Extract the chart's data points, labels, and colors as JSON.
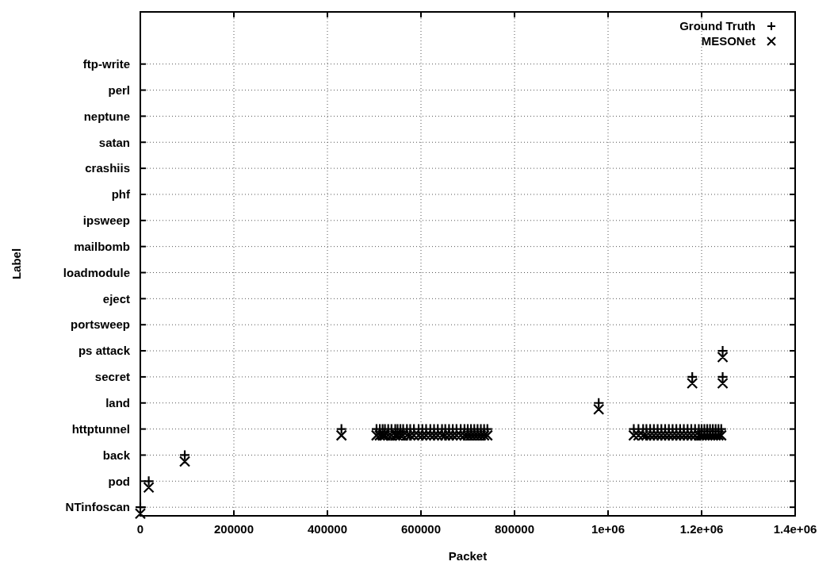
{
  "chart_data": {
    "type": "scatter",
    "orientation": "horizontal",
    "xlabel": "Packet",
    "ylabel": "Label",
    "xlim": [
      0,
      1400000
    ],
    "xticks": [
      0,
      200000,
      400000,
      600000,
      800000,
      {
        "value": 1000000,
        "label": "1e+06"
      },
      {
        "value": 1200000,
        "label": "1.2e+06"
      },
      {
        "value": 1400000,
        "label": "1.4e+06"
      }
    ],
    "categories": [
      "ftp-write",
      "perl",
      "neptune",
      "satan",
      "crashiis",
      "phf",
      "ipsweep",
      "mailbomb",
      "loadmodule",
      "eject",
      "portsweep",
      "ps attack",
      "secret",
      "land",
      "httptunnel",
      "back",
      "pod",
      "NTinfoscan"
    ],
    "grid": true,
    "legend": "top right",
    "series": [
      {
        "name": "Ground Truth",
        "color": "#000000",
        "marker": "plus",
        "values": [
          0,
          18000,
          95000,
          430000,
          505000,
          512000,
          518000,
          523000,
          530000,
          537000,
          545000,
          550000,
          556000,
          562000,
          570000,
          577000,
          585000,
          595000,
          603000,
          611000,
          620000,
          628000,
          636000,
          645000,
          652000,
          660000,
          668000,
          676000,
          685000,
          693000,
          700000,
          707000,
          714000,
          721000,
          728000,
          735000,
          742000,
          980000,
          1055000,
          1065000,
          1075000,
          1082000,
          1090000,
          1098000,
          1106000,
          1114000,
          1122000,
          1130000,
          1138000,
          1146000,
          1154000,
          1162000,
          1170000,
          1178000,
          1186000,
          1194000,
          1200000,
          1206000,
          1212000,
          1218000,
          1224000,
          1230000,
          1236000,
          1242000,
          1180000,
          1245000,
          1245000
        ],
        "x": [
          "NTinfoscan",
          "pod",
          "back",
          "httptunnel",
          "httptunnel",
          "httptunnel",
          "httptunnel",
          "httptunnel",
          "httptunnel",
          "httptunnel",
          "httptunnel",
          "httptunnel",
          "httptunnel",
          "httptunnel",
          "httptunnel",
          "httptunnel",
          "httptunnel",
          "httptunnel",
          "httptunnel",
          "httptunnel",
          "httptunnel",
          "httptunnel",
          "httptunnel",
          "httptunnel",
          "httptunnel",
          "httptunnel",
          "httptunnel",
          "httptunnel",
          "httptunnel",
          "httptunnel",
          "httptunnel",
          "httptunnel",
          "httptunnel",
          "httptunnel",
          "httptunnel",
          "httptunnel",
          "httptunnel",
          "land",
          "httptunnel",
          "httptunnel",
          "httptunnel",
          "httptunnel",
          "httptunnel",
          "httptunnel",
          "httptunnel",
          "httptunnel",
          "httptunnel",
          "httptunnel",
          "httptunnel",
          "httptunnel",
          "httptunnel",
          "httptunnel",
          "httptunnel",
          "httptunnel",
          "httptunnel",
          "httptunnel",
          "httptunnel",
          "httptunnel",
          "httptunnel",
          "httptunnel",
          "httptunnel",
          "httptunnel",
          "httptunnel",
          "httptunnel",
          "secret",
          "secret",
          "ps attack"
        ]
      },
      {
        "name": "MESONet",
        "color": "#000000",
        "marker": "cross",
        "values": [
          0,
          18000,
          95000,
          430000,
          505000,
          512000,
          518000,
          523000,
          530000,
          537000,
          545000,
          550000,
          556000,
          562000,
          570000,
          577000,
          585000,
          595000,
          603000,
          611000,
          620000,
          628000,
          636000,
          645000,
          652000,
          660000,
          668000,
          676000,
          685000,
          693000,
          700000,
          707000,
          714000,
          721000,
          728000,
          735000,
          742000,
          980000,
          1055000,
          1065000,
          1075000,
          1082000,
          1090000,
          1098000,
          1106000,
          1114000,
          1122000,
          1130000,
          1138000,
          1146000,
          1154000,
          1162000,
          1170000,
          1178000,
          1186000,
          1194000,
          1200000,
          1206000,
          1212000,
          1218000,
          1224000,
          1230000,
          1236000,
          1242000,
          1180000,
          1245000,
          1245000
        ],
        "x": [
          "NTinfoscan",
          "pod",
          "back",
          "httptunnel",
          "httptunnel",
          "httptunnel",
          "httptunnel",
          "httptunnel",
          "httptunnel",
          "httptunnel",
          "httptunnel",
          "httptunnel",
          "httptunnel",
          "httptunnel",
          "httptunnel",
          "httptunnel",
          "httptunnel",
          "httptunnel",
          "httptunnel",
          "httptunnel",
          "httptunnel",
          "httptunnel",
          "httptunnel",
          "httptunnel",
          "httptunnel",
          "httptunnel",
          "httptunnel",
          "httptunnel",
          "httptunnel",
          "httptunnel",
          "httptunnel",
          "httptunnel",
          "httptunnel",
          "httptunnel",
          "httptunnel",
          "httptunnel",
          "httptunnel",
          "land",
          "httptunnel",
          "httptunnel",
          "httptunnel",
          "httptunnel",
          "httptunnel",
          "httptunnel",
          "httptunnel",
          "httptunnel",
          "httptunnel",
          "httptunnel",
          "httptunnel",
          "httptunnel",
          "httptunnel",
          "httptunnel",
          "httptunnel",
          "httptunnel",
          "httptunnel",
          "httptunnel",
          "httptunnel",
          "httptunnel",
          "httptunnel",
          "httptunnel",
          "httptunnel",
          "httptunnel",
          "httptunnel",
          "httptunnel",
          "secret",
          "secret",
          "ps attack"
        ]
      }
    ]
  }
}
